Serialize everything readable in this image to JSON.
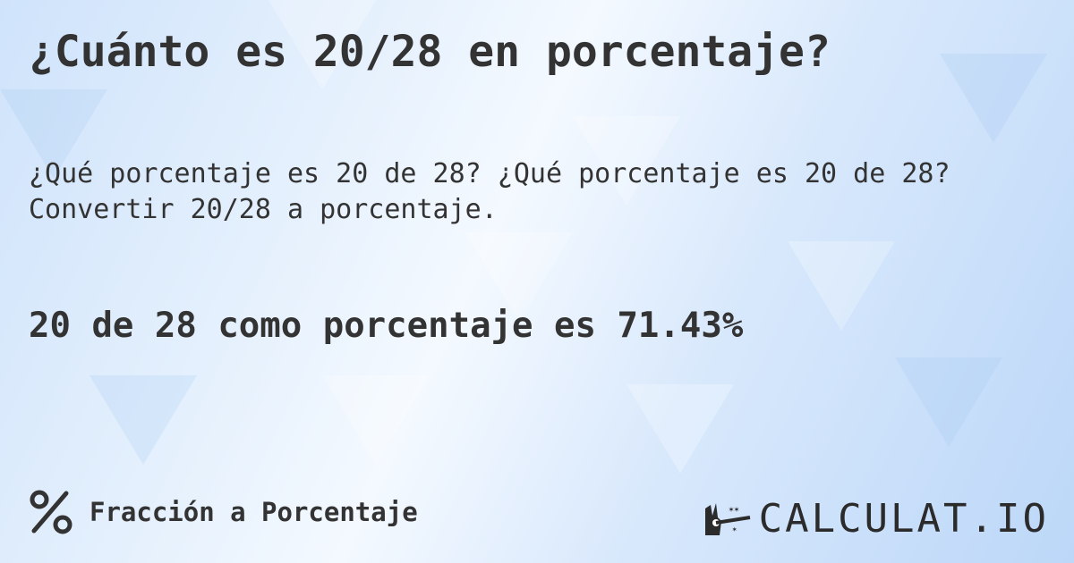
{
  "title": "¿Cuánto es 20/28 en porcentaje?",
  "subtitle_line1": "¿Qué porcentaje es 20 de 28? ¿Qué porcentaje es 20 de 28?",
  "subtitle_line2": "Convertir 20/28 a porcentaje.",
  "result": "20 de 28 como porcentaje es 71.43%",
  "footer": {
    "icon": "percent-icon",
    "label": "Fracción a Porcentaje"
  },
  "logo": {
    "text": "CALCULAT.IO",
    "icon": "magic-hand-icon"
  },
  "colors": {
    "text": "#333333",
    "background": "#d9e9fc"
  }
}
